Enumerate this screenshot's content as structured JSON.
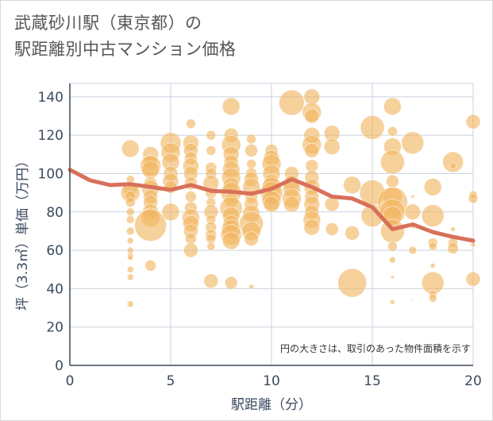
{
  "title": {
    "line1": "武蔵砂川駅（東京都）の",
    "line2": "駅距離別中古マンション価格"
  },
  "chart_data": {
    "type": "scatter",
    "xlabel": "駅距離（分）",
    "ylabel": "坪（3.3㎡）単価（万円）",
    "xlim": [
      0,
      20
    ],
    "ylim": [
      0,
      147
    ],
    "xticks": [
      0,
      5,
      10,
      15,
      20
    ],
    "yticks": [
      0,
      20,
      40,
      60,
      80,
      100,
      120,
      140
    ],
    "grid": true,
    "note": "円の大きさは、取引のあった物件面積を示す",
    "colors": {
      "bubble": "#f0b560",
      "line": "#d9705a",
      "axis": "#3b4a5f",
      "grid": "#c9d3df"
    },
    "series": [
      {
        "type": "scatter",
        "points": [
          [
            3,
            113,
            11
          ],
          [
            3,
            97,
            5
          ],
          [
            3,
            92,
            9
          ],
          [
            3,
            90,
            12
          ],
          [
            3,
            88,
            7
          ],
          [
            3,
            85,
            6
          ],
          [
            3,
            80,
            5
          ],
          [
            3,
            76,
            5
          ],
          [
            3,
            70,
            5
          ],
          [
            3,
            65,
            4
          ],
          [
            3,
            60,
            4
          ],
          [
            3,
            57,
            4
          ],
          [
            3,
            56,
            3
          ],
          [
            3,
            50,
            4
          ],
          [
            3,
            46,
            4
          ],
          [
            3,
            32,
            4
          ],
          [
            4,
            110,
            10
          ],
          [
            4,
            106,
            9
          ],
          [
            4,
            104,
            13
          ],
          [
            4,
            102,
            11
          ],
          [
            4,
            95,
            8
          ],
          [
            4,
            92,
            11
          ],
          [
            4,
            88,
            9
          ],
          [
            4,
            85,
            9
          ],
          [
            4,
            80,
            10
          ],
          [
            4,
            77,
            12
          ],
          [
            4,
            73,
            20
          ],
          [
            4,
            52,
            7
          ],
          [
            5,
            116,
            13
          ],
          [
            5,
            111,
            12
          ],
          [
            5,
            106,
            11
          ],
          [
            5,
            100,
            9
          ],
          [
            5,
            96,
            10
          ],
          [
            5,
            93,
            8
          ],
          [
            5,
            80,
            11
          ],
          [
            6,
            126,
            6
          ],
          [
            6,
            116,
            10
          ],
          [
            6,
            112,
            9
          ],
          [
            6,
            108,
            8
          ],
          [
            6,
            104,
            10
          ],
          [
            6,
            100,
            9
          ],
          [
            6,
            95,
            8
          ],
          [
            6,
            88,
            7
          ],
          [
            6,
            82,
            8
          ],
          [
            6,
            77,
            11
          ],
          [
            6,
            74,
            10
          ],
          [
            6,
            70,
            9
          ],
          [
            6,
            66,
            7
          ],
          [
            6,
            60,
            9
          ],
          [
            7,
            120,
            6
          ],
          [
            7,
            112,
            6
          ],
          [
            7,
            103,
            7
          ],
          [
            7,
            100,
            7
          ],
          [
            7,
            95,
            10
          ],
          [
            7,
            90,
            7
          ],
          [
            7,
            85,
            6
          ],
          [
            7,
            80,
            9
          ],
          [
            7,
            76,
            6
          ],
          [
            7,
            72,
            7
          ],
          [
            7,
            68,
            7
          ],
          [
            7,
            66,
            6
          ],
          [
            7,
            62,
            5
          ],
          [
            7,
            44,
            9
          ],
          [
            8,
            135,
            11
          ],
          [
            8,
            120,
            9
          ],
          [
            8,
            115,
            12
          ],
          [
            8,
            110,
            10
          ],
          [
            8,
            106,
            9
          ],
          [
            8,
            102,
            11
          ],
          [
            8,
            98,
            12
          ],
          [
            8,
            94,
            10
          ],
          [
            8,
            90,
            13
          ],
          [
            8,
            86,
            9
          ],
          [
            8,
            82,
            14
          ],
          [
            8,
            78,
            11
          ],
          [
            8,
            74,
            10
          ],
          [
            8,
            71,
            12
          ],
          [
            8,
            68,
            13
          ],
          [
            8,
            65,
            11
          ],
          [
            8,
            43,
            8
          ],
          [
            9,
            118,
            6
          ],
          [
            9,
            112,
            8
          ],
          [
            9,
            105,
            6
          ],
          [
            9,
            100,
            7
          ],
          [
            9,
            97,
            9
          ],
          [
            9,
            93,
            11
          ],
          [
            9,
            88,
            8
          ],
          [
            9,
            84,
            9
          ],
          [
            9,
            79,
            11
          ],
          [
            9,
            74,
            15
          ],
          [
            9,
            70,
            12
          ],
          [
            9,
            66,
            9
          ],
          [
            9,
            41,
            3
          ],
          [
            10,
            112,
            8
          ],
          [
            10,
            108,
            10
          ],
          [
            10,
            105,
            12
          ],
          [
            10,
            100,
            11
          ],
          [
            10,
            96,
            9
          ],
          [
            10,
            93,
            12
          ],
          [
            10,
            90,
            14
          ],
          [
            10,
            86,
            12
          ],
          [
            10,
            84,
            10
          ],
          [
            11,
            137,
            16
          ],
          [
            11,
            100,
            9
          ],
          [
            11,
            95,
            10
          ],
          [
            11,
            92,
            11
          ],
          [
            11,
            87,
            12
          ],
          [
            11,
            84,
            10
          ],
          [
            12,
            140,
            10
          ],
          [
            12,
            132,
            12
          ],
          [
            12,
            130,
            9
          ],
          [
            12,
            120,
            10
          ],
          [
            12,
            115,
            12
          ],
          [
            12,
            112,
            9
          ],
          [
            12,
            104,
            8
          ],
          [
            12,
            98,
            9
          ],
          [
            12,
            93,
            10
          ],
          [
            12,
            88,
            9
          ],
          [
            12,
            84,
            10
          ],
          [
            12,
            80,
            9
          ],
          [
            12,
            76,
            11
          ],
          [
            12,
            72,
            10
          ],
          [
            13,
            121,
            10
          ],
          [
            13,
            114,
            10
          ],
          [
            13,
            84,
            9
          ],
          [
            13,
            71,
            8
          ],
          [
            14,
            94,
            11
          ],
          [
            14,
            69,
            9
          ],
          [
            14,
            43,
            18
          ],
          [
            15,
            124,
            15
          ],
          [
            15,
            90,
            16
          ],
          [
            15,
            78,
            14
          ],
          [
            16,
            135,
            11
          ],
          [
            16,
            122,
            6
          ],
          [
            16,
            114,
            11
          ],
          [
            16,
            106,
            15
          ],
          [
            16,
            96,
            8
          ],
          [
            16,
            88,
            12
          ],
          [
            16,
            85,
            19
          ],
          [
            16,
            80,
            16
          ],
          [
            16,
            78,
            12
          ],
          [
            16,
            70,
            15
          ],
          [
            16,
            62,
            6
          ],
          [
            16,
            55,
            4
          ],
          [
            16,
            46,
            2
          ],
          [
            16,
            33,
            3
          ],
          [
            17,
            116,
            14
          ],
          [
            17,
            88,
            2
          ],
          [
            17,
            80,
            10
          ],
          [
            17,
            72,
            2
          ],
          [
            17,
            60,
            5
          ],
          [
            17,
            34,
            1
          ],
          [
            18,
            93,
            11
          ],
          [
            18,
            78,
            14
          ],
          [
            18,
            64,
            6
          ],
          [
            18,
            62,
            5
          ],
          [
            18,
            52,
            3
          ],
          [
            18,
            43,
            14
          ],
          [
            18,
            37,
            5
          ],
          [
            18,
            35,
            5
          ],
          [
            19,
            106,
            13
          ],
          [
            19,
            104,
            4
          ],
          [
            19,
            64,
            6
          ],
          [
            19,
            61,
            7
          ],
          [
            19,
            71,
            3
          ],
          [
            20,
            127,
            9
          ],
          [
            20,
            89,
            5
          ],
          [
            20,
            87,
            6
          ],
          [
            20,
            63,
            3
          ],
          [
            20,
            45,
            9
          ]
        ]
      },
      {
        "type": "line",
        "x": [
          0,
          1,
          2,
          3,
          4,
          5,
          6,
          7,
          8,
          9,
          10,
          11,
          12,
          13,
          14,
          15,
          16,
          17,
          18,
          19,
          20
        ],
        "y": [
          102,
          96.5,
          94,
          94.5,
          93,
          91.5,
          94,
          91,
          90.5,
          89.5,
          92,
          97,
          93,
          88,
          87,
          82.5,
          71,
          73.5,
          69.5,
          67,
          65
        ]
      }
    ]
  }
}
